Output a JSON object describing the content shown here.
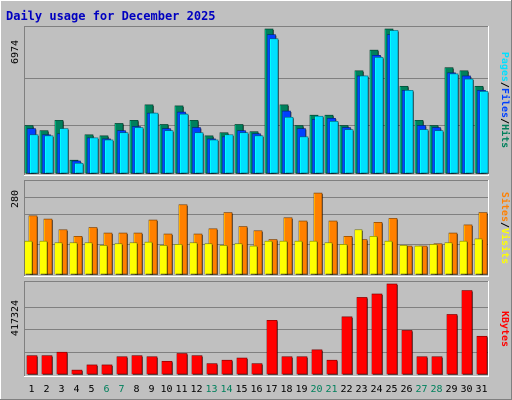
{
  "title": "Daily usage for December 2025",
  "colors": {
    "background": "#c0c0c0",
    "title": "#0000c0",
    "hits": "#00805c",
    "files": "#0040ff",
    "pages": "#00e0ff",
    "visits": "#ff8000",
    "sites": "#ffff00",
    "kbytes": "#ff0000",
    "weekend_label": "#00805c",
    "weekday_label": "#000000"
  },
  "chart_data": [
    {
      "type": "bar",
      "panel": "hits_files_pages",
      "categories": [
        "1",
        "2",
        "3",
        "4",
        "5",
        "6",
        "7",
        "8",
        "9",
        "10",
        "11",
        "12",
        "13",
        "14",
        "15",
        "16",
        "17",
        "18",
        "19",
        "20",
        "21",
        "22",
        "23",
        "24",
        "25",
        "26",
        "27",
        "28",
        "29",
        "30",
        "31"
      ],
      "ymax_label": "6974",
      "ylim": [
        0,
        6974
      ],
      "legend": [
        {
          "name": "Hits",
          "color_key": "hits"
        },
        {
          "name": "Files",
          "color_key": "files"
        },
        {
          "name": "Pages",
          "color_key": "pages"
        }
      ],
      "legend_separator": "/",
      "series": [
        {
          "name": "Hits",
          "values": [
            2300,
            2050,
            2550,
            620,
            1850,
            1800,
            2400,
            2550,
            3300,
            2350,
            3250,
            2550,
            1800,
            1950,
            2350,
            2000,
            6974,
            3300,
            2300,
            2800,
            2800,
            2300,
            4950,
            5950,
            6974,
            4200,
            2550,
            2300,
            5100,
            4950,
            4200
          ]
        },
        {
          "name": "Files",
          "values": [
            2150,
            1850,
            1900,
            580,
            1700,
            1650,
            2050,
            2250,
            2900,
            2150,
            2950,
            2200,
            1650,
            1750,
            2050,
            1900,
            6700,
            3000,
            2150,
            2600,
            2650,
            2200,
            4700,
            5700,
            6700,
            4000,
            2300,
            2200,
            4850,
            4700,
            4000
          ]
        },
        {
          "name": "Pages",
          "values": [
            1850,
            1800,
            2150,
            470,
            1700,
            1600,
            1950,
            2200,
            2900,
            2050,
            2850,
            1950,
            1600,
            1850,
            1950,
            1800,
            6500,
            2700,
            1750,
            2750,
            2500,
            2100,
            4700,
            5600,
            6900,
            4000,
            2100,
            2050,
            4800,
            4550,
            3950
          ]
        }
      ]
    },
    {
      "type": "bar",
      "panel": "visits_sites",
      "categories": [
        "1",
        "2",
        "3",
        "4",
        "5",
        "6",
        "7",
        "8",
        "9",
        "10",
        "11",
        "12",
        "13",
        "14",
        "15",
        "16",
        "17",
        "18",
        "19",
        "20",
        "21",
        "22",
        "23",
        "24",
        "25",
        "26",
        "27",
        "28",
        "29",
        "30",
        "31"
      ],
      "ymax_label": "280",
      "ylim": [
        0,
        280
      ],
      "legend": [
        {
          "name": "Visits",
          "color_key": "sites"
        },
        {
          "name": "Sites",
          "color_key": "visits"
        }
      ],
      "legend_separator": "/",
      "series": [
        {
          "name": "Sites",
          "values": [
            101,
            101,
            96,
            96,
            96,
            88,
            93,
            96,
            98,
            88,
            91,
            96,
            93,
            88,
            93,
            86,
            101,
            101,
            101,
            101,
            96,
            91,
            136,
            116,
            101,
            88,
            86,
            91,
            96,
            101,
            108
          ]
        },
        {
          "name": "Visits",
          "values": [
            179,
            169,
            136,
            116,
            143,
            126,
            126,
            126,
            166,
            123,
            213,
            123,
            139,
            189,
            146,
            133,
            106,
            173,
            163,
            249,
            163,
            116,
            106,
            159,
            171,
            86,
            86,
            93,
            126,
            151,
            189
          ]
        }
      ]
    },
    {
      "type": "bar",
      "panel": "kbytes",
      "categories": [
        "1",
        "2",
        "3",
        "4",
        "5",
        "6",
        "7",
        "8",
        "9",
        "10",
        "11",
        "12",
        "13",
        "14",
        "15",
        "16",
        "17",
        "18",
        "19",
        "20",
        "21",
        "22",
        "23",
        "24",
        "25",
        "26",
        "27",
        "28",
        "29",
        "30",
        "31"
      ],
      "ymax_label": "417324",
      "ylim": [
        0,
        417324
      ],
      "legend": [
        {
          "name": "KBytes",
          "color_key": "kbytes"
        }
      ],
      "series": [
        {
          "name": "KBytes",
          "values": [
            85000,
            85000,
            101000,
            18000,
            42000,
            42000,
            80000,
            85000,
            80000,
            59000,
            95000,
            85000,
            48000,
            64000,
            74000,
            48000,
            249000,
            80000,
            80000,
            112000,
            64000,
            265000,
            355000,
            371000,
            417324,
            202000,
            80000,
            80000,
            276000,
            387000,
            175000
          ]
        }
      ]
    }
  ]
}
